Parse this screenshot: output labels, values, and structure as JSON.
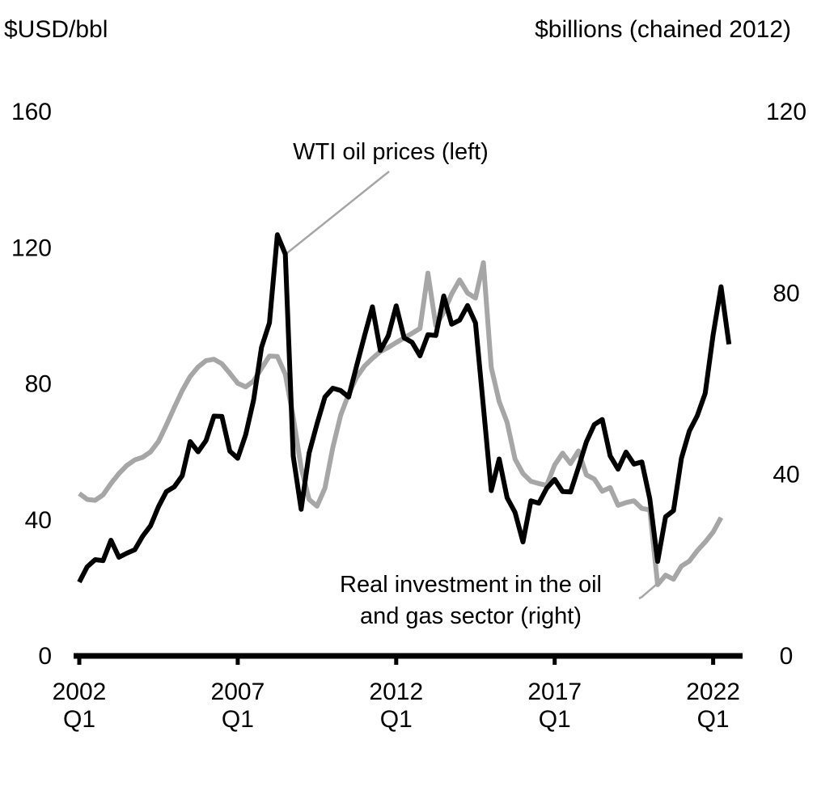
{
  "chart_data": {
    "type": "line",
    "left_axis": {
      "unit_label": "$USD/bbl",
      "ticks": [
        "0",
        "40",
        "80",
        "120",
        "160"
      ],
      "range": [
        0,
        160
      ]
    },
    "right_axis": {
      "unit_label": "$billions (chained 2012)",
      "ticks": [
        "0",
        "40",
        "80",
        "120"
      ],
      "range": [
        0,
        120
      ]
    },
    "x_ticks": [
      {
        "year": "2002",
        "quarter": "Q1",
        "t": 2002.0
      },
      {
        "year": "2007",
        "quarter": "Q1",
        "t": 2007.0
      },
      {
        "year": "2012",
        "quarter": "Q1",
        "t": 2012.0
      },
      {
        "year": "2017",
        "quarter": "Q1",
        "t": 2017.0
      },
      {
        "year": "2022",
        "quarter": "Q1",
        "t": 2022.0
      }
    ],
    "x_range": [
      2002.0,
      2022.75
    ],
    "grid": false,
    "series": [
      {
        "name": "WTI oil prices (left)",
        "axis": "left",
        "color": "#000000",
        "values": [
          [
            2002.0,
            21.7
          ],
          [
            2002.25,
            26.2
          ],
          [
            2002.5,
            28.3
          ],
          [
            2002.75,
            28.0
          ],
          [
            2003.0,
            34.0
          ],
          [
            2003.25,
            29.0
          ],
          [
            2003.5,
            30.2
          ],
          [
            2003.75,
            31.2
          ],
          [
            2004.0,
            35.2
          ],
          [
            2004.25,
            38.3
          ],
          [
            2004.5,
            43.9
          ],
          [
            2004.75,
            48.3
          ],
          [
            2005.0,
            49.7
          ],
          [
            2005.25,
            53.0
          ],
          [
            2005.5,
            63.0
          ],
          [
            2005.75,
            60.0
          ],
          [
            2006.0,
            63.3
          ],
          [
            2006.25,
            70.5
          ],
          [
            2006.5,
            70.4
          ],
          [
            2006.75,
            60.2
          ],
          [
            2007.0,
            58.1
          ],
          [
            2007.25,
            65.0
          ],
          [
            2007.5,
            75.2
          ],
          [
            2007.75,
            90.7
          ],
          [
            2008.0,
            97.9
          ],
          [
            2008.25,
            123.8
          ],
          [
            2008.5,
            118.1
          ],
          [
            2008.75,
            58.7
          ],
          [
            2009.0,
            43.1
          ],
          [
            2009.25,
            59.6
          ],
          [
            2009.5,
            68.2
          ],
          [
            2009.75,
            76.1
          ],
          [
            2010.0,
            78.7
          ],
          [
            2010.25,
            78.0
          ],
          [
            2010.5,
            76.1
          ],
          [
            2010.75,
            85.2
          ],
          [
            2011.0,
            94.1
          ],
          [
            2011.25,
            102.6
          ],
          [
            2011.5,
            89.8
          ],
          [
            2011.75,
            94.1
          ],
          [
            2012.0,
            102.9
          ],
          [
            2012.25,
            93.5
          ],
          [
            2012.5,
            92.2
          ],
          [
            2012.75,
            88.2
          ],
          [
            2013.0,
            94.4
          ],
          [
            2013.25,
            94.2
          ],
          [
            2013.5,
            105.8
          ],
          [
            2013.75,
            97.5
          ],
          [
            2014.0,
            98.7
          ],
          [
            2014.25,
            103.0
          ],
          [
            2014.5,
            97.9
          ],
          [
            2014.75,
            73.2
          ],
          [
            2015.0,
            48.6
          ],
          [
            2015.25,
            57.9
          ],
          [
            2015.5,
            46.5
          ],
          [
            2015.75,
            42.2
          ],
          [
            2016.0,
            33.5
          ],
          [
            2016.25,
            45.6
          ],
          [
            2016.5,
            44.9
          ],
          [
            2016.75,
            49.3
          ],
          [
            2017.0,
            51.9
          ],
          [
            2017.25,
            48.3
          ],
          [
            2017.5,
            48.2
          ],
          [
            2017.75,
            55.4
          ],
          [
            2018.0,
            62.9
          ],
          [
            2018.25,
            68.0
          ],
          [
            2018.5,
            69.5
          ],
          [
            2018.75,
            58.8
          ],
          [
            2019.0,
            54.9
          ],
          [
            2019.25,
            59.9
          ],
          [
            2019.5,
            56.4
          ],
          [
            2019.75,
            57.0
          ],
          [
            2020.0,
            46.2
          ],
          [
            2020.25,
            27.8
          ],
          [
            2020.5,
            40.9
          ],
          [
            2020.75,
            42.7
          ],
          [
            2021.0,
            58.1
          ],
          [
            2021.25,
            66.1
          ],
          [
            2021.5,
            70.6
          ],
          [
            2021.75,
            77.2
          ],
          [
            2022.0,
            94.4
          ],
          [
            2022.25,
            108.5
          ],
          [
            2022.5,
            91.6
          ]
        ]
      },
      {
        "name": "Real investment in the oil and gas sector (right)",
        "axis": "right",
        "color": "#a6a6a6",
        "values": [
          [
            2002.0,
            35.8
          ],
          [
            2002.25,
            34.5
          ],
          [
            2002.5,
            34.3
          ],
          [
            2002.75,
            35.5
          ],
          [
            2003.0,
            38.0
          ],
          [
            2003.25,
            40.2
          ],
          [
            2003.5,
            42.0
          ],
          [
            2003.75,
            43.2
          ],
          [
            2004.0,
            43.8
          ],
          [
            2004.25,
            45.0
          ],
          [
            2004.5,
            47.3
          ],
          [
            2004.75,
            50.9
          ],
          [
            2005.0,
            54.8
          ],
          [
            2005.25,
            58.5
          ],
          [
            2005.5,
            61.6
          ],
          [
            2005.75,
            63.7
          ],
          [
            2006.0,
            65.1
          ],
          [
            2006.25,
            65.4
          ],
          [
            2006.5,
            64.4
          ],
          [
            2006.75,
            62.3
          ],
          [
            2007.0,
            60.1
          ],
          [
            2007.25,
            59.3
          ],
          [
            2007.5,
            60.6
          ],
          [
            2007.75,
            63.4
          ],
          [
            2008.0,
            66.1
          ],
          [
            2008.25,
            66.0
          ],
          [
            2008.5,
            62.1
          ],
          [
            2008.75,
            52.6
          ],
          [
            2009.0,
            41.5
          ],
          [
            2009.25,
            34.5
          ],
          [
            2009.5,
            33.0
          ],
          [
            2009.75,
            37.0
          ],
          [
            2010.0,
            45.9
          ],
          [
            2010.25,
            53.1
          ],
          [
            2010.5,
            57.7
          ],
          [
            2010.75,
            61.4
          ],
          [
            2011.0,
            63.9
          ],
          [
            2011.25,
            65.6
          ],
          [
            2011.5,
            67.1
          ],
          [
            2011.75,
            68.0
          ],
          [
            2012.0,
            69.1
          ],
          [
            2012.25,
            70.1
          ],
          [
            2012.5,
            71.1
          ],
          [
            2012.75,
            72.2
          ],
          [
            2013.0,
            84.4
          ],
          [
            2013.25,
            72.8
          ],
          [
            2013.5,
            75.8
          ],
          [
            2013.75,
            79.8
          ],
          [
            2014.0,
            82.9
          ],
          [
            2014.25,
            80.0
          ],
          [
            2014.5,
            78.9
          ],
          [
            2014.75,
            86.7
          ],
          [
            2015.0,
            63.6
          ],
          [
            2015.25,
            56.1
          ],
          [
            2015.5,
            51.5
          ],
          [
            2015.75,
            43.4
          ],
          [
            2016.0,
            40.2
          ],
          [
            2016.25,
            38.5
          ],
          [
            2016.5,
            38.0
          ],
          [
            2016.75,
            37.6
          ],
          [
            2017.0,
            42.1
          ],
          [
            2017.25,
            44.7
          ],
          [
            2017.5,
            42.4
          ],
          [
            2017.75,
            45.2
          ],
          [
            2018.0,
            39.9
          ],
          [
            2018.25,
            39.0
          ],
          [
            2018.5,
            36.3
          ],
          [
            2018.75,
            37.1
          ],
          [
            2019.0,
            33.2
          ],
          [
            2019.25,
            33.8
          ],
          [
            2019.5,
            34.2
          ],
          [
            2019.75,
            32.5
          ],
          [
            2020.0,
            32.2
          ],
          [
            2020.25,
            15.7
          ],
          [
            2020.5,
            17.8
          ],
          [
            2020.75,
            16.9
          ],
          [
            2021.0,
            19.8
          ],
          [
            2021.25,
            20.9
          ],
          [
            2021.5,
            23.2
          ],
          [
            2021.75,
            25.1
          ],
          [
            2022.0,
            27.3
          ],
          [
            2022.25,
            30.5
          ]
        ]
      }
    ],
    "annotations": [
      {
        "series": 0,
        "lines": [
          "WTI oil prices (left)"
        ],
        "anchor": [
          2008.5,
          118.0
        ]
      },
      {
        "series": 1,
        "lines": [
          "Real investment in the oil",
          "and gas sector (right)"
        ],
        "anchor": [
          2019.75,
          13.0
        ]
      }
    ]
  }
}
